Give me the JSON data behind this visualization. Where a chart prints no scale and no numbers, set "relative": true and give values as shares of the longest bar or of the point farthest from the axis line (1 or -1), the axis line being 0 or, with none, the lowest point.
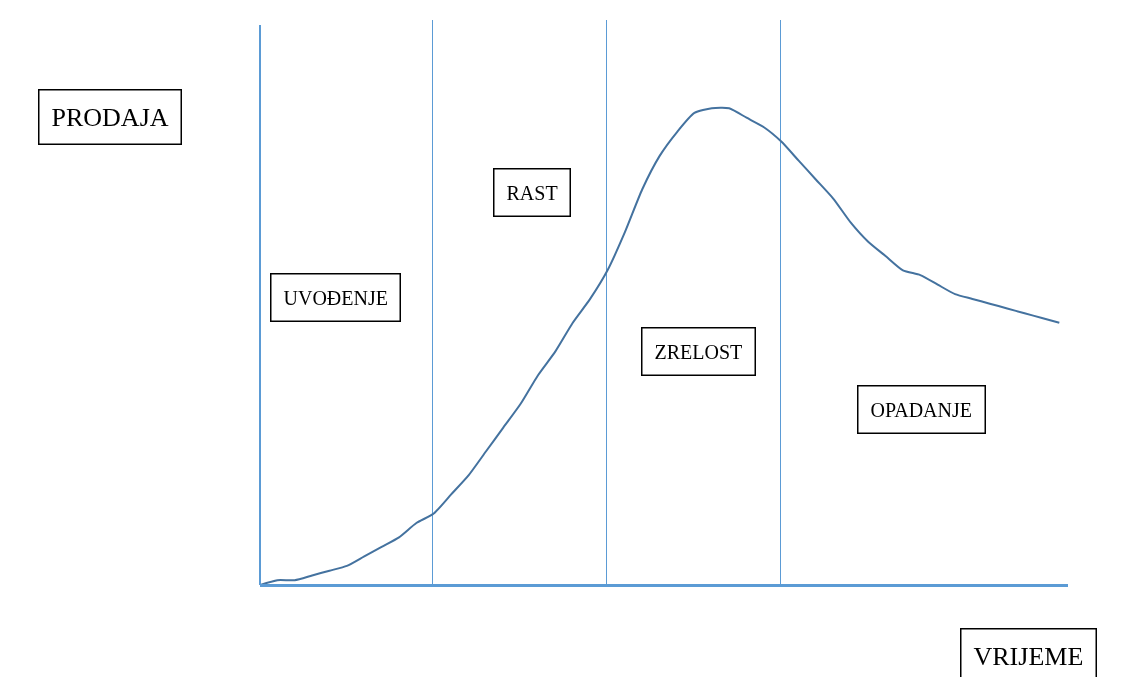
{
  "chart_data": {
    "type": "line",
    "relative": true,
    "categories": [
      null,
      null,
      null,
      null,
      null,
      null,
      null,
      null,
      null,
      null,
      null,
      null,
      null,
      null,
      null,
      null,
      null,
      null,
      null,
      null,
      null,
      null,
      null,
      null,
      null,
      null,
      null,
      null,
      null,
      null,
      null,
      null,
      null,
      null,
      null,
      null,
      null,
      null,
      null,
      null,
      null,
      null,
      null,
      null,
      null,
      null,
      null
    ],
    "series": [
      {
        "color": "#44729f",
        "values": [
          0,
          0.01,
          0.01,
          0.02,
          0.03,
          0.04,
          0.06,
          0.08,
          0.1,
          0.13,
          0.15,
          0.19,
          0.23,
          0.28,
          0.33,
          0.38,
          0.44,
          0.49,
          0.55,
          0.6,
          0.66,
          0.74,
          0.83,
          0.9,
          0.95,
          0.99,
          1,
          1,
          0.98,
          0.96,
          0.93,
          0.89,
          0.85,
          0.81,
          0.76,
          0.72,
          0.69,
          0.66,
          0.65,
          0.63,
          0.61,
          0.6,
          0.59,
          0.58,
          0.57,
          0.56,
          0.55
        ]
      }
    ],
    "ylabel": "PRODAJA",
    "xlabel": "VRIJEME",
    "annotations": [
      "UVOĐENJE",
      "RAST",
      "ZRELOST",
      "OPADANJE"
    ],
    "grid": "x",
    "marker": "none",
    "line_style": "solid"
  }
}
